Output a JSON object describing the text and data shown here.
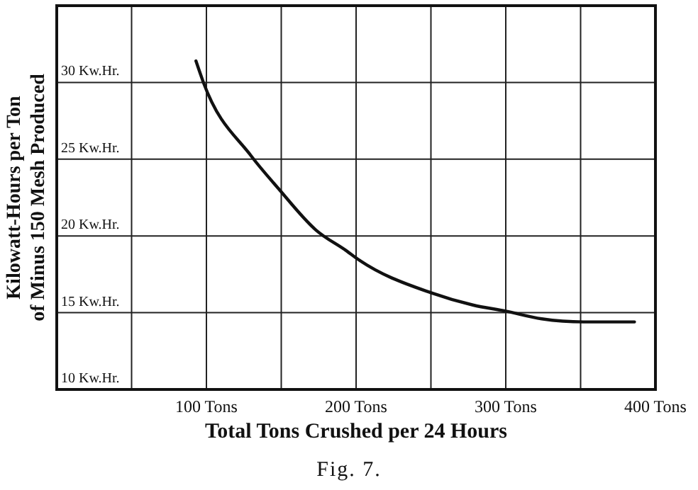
{
  "chart_data": {
    "type": "line",
    "xlabel": "Total Tons Crushed per 24 Hours",
    "ylabel": "Kilowatt-Hours per Ton\nof Minus 150 Mesh Produced",
    "annotations": [
      "Fig. 7."
    ],
    "x": [
      93,
      98,
      130,
      148,
      173,
      194,
      201,
      250,
      278,
      300,
      324,
      352,
      386
    ],
    "series": [
      {
        "color": "#111111",
        "values": [
          31.4,
          30,
          25.2,
          23.1,
          20.4,
          19,
          18.5,
          16.3,
          15.5,
          15.1,
          14.6,
          14.4,
          14.4
        ]
      }
    ],
    "xlim": [
      0,
      400
    ],
    "xticks": [
      {
        "value": 50,
        "label": null
      },
      {
        "value": 100,
        "label": "100 Tons"
      },
      {
        "value": 150,
        "label": null
      },
      {
        "value": 200,
        "label": "200 Tons"
      },
      {
        "value": 250,
        "label": null
      },
      {
        "value": 300,
        "label": "300 Tons"
      },
      {
        "value": 350,
        "label": null
      },
      {
        "value": 400,
        "label": "400 Tons"
      }
    ],
    "ylim": [
      10,
      35
    ],
    "yticks": [
      {
        "value": 10,
        "label": "10 Kw.Hr."
      },
      {
        "value": 15,
        "label": "15 Kw.Hr."
      },
      {
        "value": 20,
        "label": "20 Kw.Hr."
      },
      {
        "value": 25,
        "label": "25 Kw.Hr."
      },
      {
        "value": 30,
        "label": "30 Kw.Hr."
      }
    ],
    "grid": true,
    "marker": "none",
    "line_style": "solid"
  }
}
